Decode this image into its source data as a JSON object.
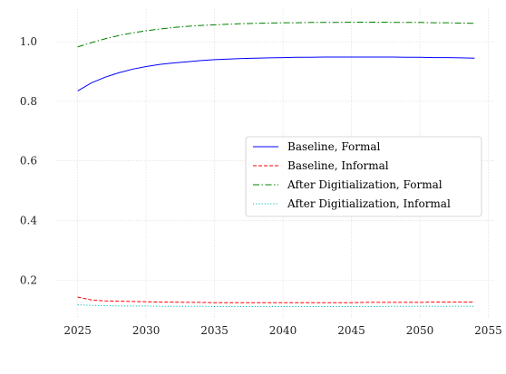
{
  "chart_data": {
    "type": "line",
    "title": "",
    "xlabel": "",
    "ylabel": "",
    "xlim": [
      2023.5,
      2055.5
    ],
    "ylim": [
      0.07,
      1.11
    ],
    "xticks": [
      2025,
      2030,
      2035,
      2040,
      2045,
      2050,
      2055
    ],
    "yticks": [
      0.2,
      0.4,
      0.6,
      0.8,
      1.0
    ],
    "xtick_labels": [
      "2025",
      "2030",
      "2035",
      "2040",
      "2045",
      "2050",
      "2055"
    ],
    "ytick_labels": [
      "0.2",
      "0.4",
      "0.6",
      "0.8",
      "1.0"
    ],
    "grid": true,
    "legend_position": "center-right",
    "x": [
      2025,
      2026,
      2027,
      2028,
      2029,
      2030,
      2031,
      2032,
      2033,
      2034,
      2035,
      2036,
      2037,
      2038,
      2039,
      2040,
      2041,
      2042,
      2043,
      2044,
      2045,
      2046,
      2047,
      2048,
      2049,
      2050,
      2051,
      2052,
      2053,
      2054
    ],
    "series": [
      {
        "name": "Baseline, Formal",
        "color": "#0000ff",
        "dash": "solid",
        "values": [
          0.835,
          0.862,
          0.881,
          0.896,
          0.908,
          0.917,
          0.924,
          0.929,
          0.933,
          0.937,
          0.94,
          0.942,
          0.944,
          0.945,
          0.946,
          0.947,
          0.948,
          0.948,
          0.949,
          0.949,
          0.949,
          0.949,
          0.949,
          0.949,
          0.948,
          0.948,
          0.947,
          0.947,
          0.946,
          0.945
        ]
      },
      {
        "name": "Baseline, Informal",
        "color": "#ff0000",
        "dash": "dashed",
        "values": [
          0.143,
          0.133,
          0.13,
          0.129,
          0.128,
          0.127,
          0.126,
          0.126,
          0.125,
          0.125,
          0.124,
          0.124,
          0.124,
          0.124,
          0.124,
          0.124,
          0.124,
          0.124,
          0.124,
          0.124,
          0.124,
          0.125,
          0.125,
          0.125,
          0.125,
          0.125,
          0.126,
          0.126,
          0.126,
          0.126
        ]
      },
      {
        "name": "After Digitialization, Formal",
        "color": "#008000",
        "dash": "dashdot",
        "values": [
          0.983,
          0.997,
          1.01,
          1.021,
          1.03,
          1.037,
          1.043,
          1.048,
          1.052,
          1.055,
          1.057,
          1.059,
          1.061,
          1.062,
          1.063,
          1.064,
          1.064,
          1.065,
          1.065,
          1.065,
          1.066,
          1.066,
          1.066,
          1.065,
          1.065,
          1.065,
          1.064,
          1.064,
          1.063,
          1.062
        ]
      },
      {
        "name": "After Digitialization, Informal",
        "color": "#00bfbf",
        "dash": "dotted",
        "values": [
          0.117,
          0.115,
          0.114,
          0.113,
          0.113,
          0.113,
          0.112,
          0.112,
          0.112,
          0.112,
          0.111,
          0.111,
          0.111,
          0.111,
          0.111,
          0.111,
          0.111,
          0.111,
          0.111,
          0.111,
          0.111,
          0.111,
          0.111,
          0.112,
          0.112,
          0.112,
          0.112,
          0.112,
          0.112,
          0.112
        ]
      }
    ]
  }
}
